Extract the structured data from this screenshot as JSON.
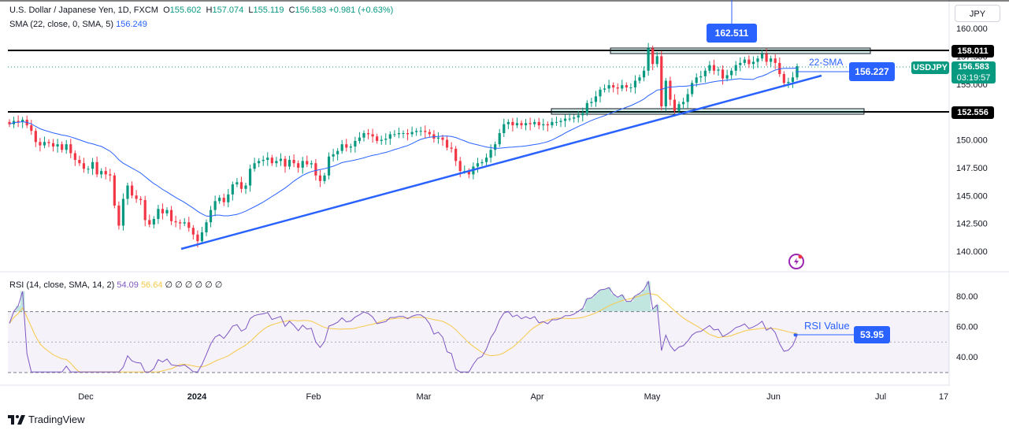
{
  "header": {
    "title": "U.S. Dollar / Japanese Yen, 1D, FXCM",
    "ohlc": [
      {
        "k": "O",
        "v": "155.602"
      },
      {
        "k": "H",
        "v": "157.074"
      },
      {
        "k": "L",
        "v": "155.119"
      },
      {
        "k": "C",
        "v": "156.583"
      }
    ],
    "change": "+0.981 (+0.63%)",
    "sma_label": "SMA (22, close, 0, SMA, 5)",
    "sma_value": "156.249",
    "rsi_label": "RSI (14, close, SMA, 14, 2)",
    "rsi_value": "54.09",
    "rsi_ma_value": "56.64",
    "rsi_zeros": "∅ ∅ ∅ ∅ ∅ ∅"
  },
  "currency_button": "JPY",
  "footer": {
    "brand": "TradingView"
  },
  "colors": {
    "up": "#089981",
    "down": "#f23645",
    "sma": "#2962ff",
    "trendline": "#2962ff",
    "rsi": "#7e57c2",
    "rsi_ma": "#f7c948",
    "level_line": "#000000"
  },
  "annotations": {
    "sma_text": "22-SMA",
    "sma_box": "156.227",
    "peak_box": "162.511",
    "rsi_text": "RSI Value",
    "rsi_box": "53.95",
    "symbol_tag": "USDJPY",
    "price_tag": "156.583",
    "countdown": "03:19:57",
    "level_high_tag": "158.011",
    "level_low_tag": "152.556"
  },
  "chart_data": [
    {
      "type": "candlestick",
      "title": "U.S. Dollar / Japanese Yen, 1D, FXCM",
      "x_tick_labels": [
        "Dec",
        "2024",
        "Feb",
        "Mar",
        "Apr",
        "May",
        "Jun",
        "Jul",
        "17"
      ],
      "y_tick_labels": [
        "140.000",
        "142.500",
        "145.000",
        "147.500",
        "150.000",
        "152.500",
        "155.000",
        "157.500",
        "160.000"
      ],
      "ylim": [
        137.5,
        162.2
      ],
      "grid": true,
      "close_series": [
        151.4,
        151.7,
        151.6,
        151.8,
        151.3,
        150.8,
        149.8,
        149.5,
        149.8,
        149.7,
        149.4,
        149.6,
        149.1,
        149.6,
        148.8,
        148.2,
        147.9,
        147.4,
        147.4,
        148.0,
        146.9,
        147.2,
        146.9,
        146.8,
        144.1,
        142.3,
        144.7,
        145.9,
        145.0,
        144.7,
        144.6,
        142.8,
        142.4,
        142.9,
        143.8,
        143.4,
        143.7,
        142.7,
        142.6,
        142.5,
        142.6,
        142.1,
        141.5,
        140.9,
        141.7,
        142.6,
        143.7,
        144.5,
        144.8,
        144.4,
        145.1,
        146.0,
        146.2,
        145.6,
        145.9,
        147.4,
        147.9,
        148.1,
        148.2,
        148.4,
        147.9,
        148.1,
        148.3,
        147.6,
        148.2,
        147.9,
        147.5,
        148.1,
        147.8,
        147.9,
        146.8,
        146.3,
        146.8,
        148.5,
        148.7,
        149.0,
        149.6,
        149.3,
        149.4,
        149.9,
        150.2,
        150.6,
        150.5,
        150.3,
        149.9,
        150.0,
        150.1,
        150.5,
        150.5,
        150.6,
        150.6,
        150.5,
        150.7,
        150.8,
        150.8,
        150.7,
        150.5,
        150.1,
        150.2,
        150.0,
        149.3,
        149.2,
        148.1,
        147.2,
        147.2,
        146.9,
        147.6,
        147.9,
        148.0,
        148.4,
        149.1,
        149.6,
        150.6,
        151.4,
        151.6,
        151.3,
        151.5,
        151.3,
        151.5,
        151.4,
        151.6,
        151.3,
        151.4,
        151.3,
        151.6,
        151.6,
        151.7,
        151.9,
        151.9,
        152.0,
        152.2,
        152.4,
        153.3,
        153.4,
        153.9,
        154.5,
        154.6,
        154.9,
        154.7,
        154.6,
        154.9,
        154.7,
        154.7,
        155.3,
        155.6,
        156.2,
        158.2,
        156.8,
        157.5,
        153.0,
        155.3,
        153.6,
        152.6,
        153.2,
        153.4,
        154.1,
        155.1,
        155.6,
        155.7,
        156.2,
        156.7,
        156.2,
        156.3,
        155.5,
        155.8,
        156.2,
        156.7,
        156.9,
        157.2,
        156.8,
        157.0,
        157.3,
        157.7,
        157.0,
        157.3,
        156.9,
        155.9,
        155.1,
        155.2,
        155.6,
        156.6
      ],
      "sma_22": "blue line following price",
      "levels": [
        {
          "label": "158.011",
          "value": 158.011
        },
        {
          "label": "152.556",
          "value": 152.556
        }
      ],
      "rsi_panel": {
        "y_tick_labels": [
          "40.00",
          "60.00",
          "80.00"
        ],
        "ylim": [
          28,
          92
        ],
        "bands": [
          30,
          50,
          70
        ],
        "rsi_last": 54.09,
        "rsi_ma_last": 56.64
      }
    }
  ]
}
